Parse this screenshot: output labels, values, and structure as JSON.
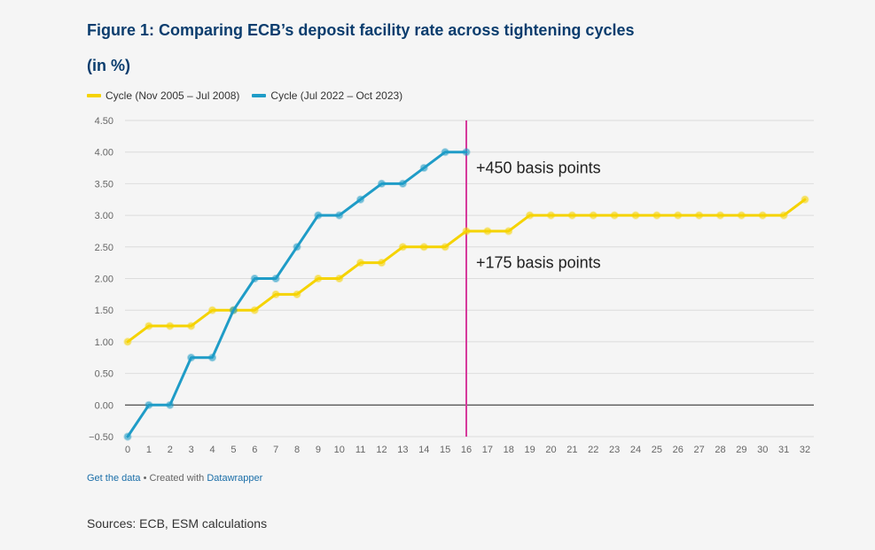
{
  "chart_data": {
    "type": "line",
    "title": "Figure 1: Comparing ECB’s deposit facility rate across tightening cycles",
    "subtitle": "(in %)",
    "xlabel": "",
    "ylabel": "",
    "ylim": [
      -0.5,
      4.5
    ],
    "xlim": [
      0,
      32
    ],
    "yticks": [
      "4.50",
      "4.00",
      "3.50",
      "3.00",
      "2.50",
      "2.00",
      "1.50",
      "1.00",
      "0.50",
      "0.00",
      "−0.50"
    ],
    "ytick_values": [
      4.5,
      4.0,
      3.5,
      3.0,
      2.5,
      2.0,
      1.5,
      1.0,
      0.5,
      0.0,
      -0.5
    ],
    "xticks": [
      0,
      1,
      2,
      3,
      4,
      5,
      6,
      7,
      8,
      9,
      10,
      11,
      12,
      13,
      14,
      15,
      16,
      17,
      18,
      19,
      20,
      21,
      22,
      23,
      24,
      25,
      26,
      27,
      28,
      29,
      30,
      31,
      32
    ],
    "grid": true,
    "legend_position": "top-left",
    "series": [
      {
        "name": "Cycle (Nov 2005 – Jul 2008)",
        "color": "#f5d300",
        "x": [
          0,
          1,
          2,
          3,
          4,
          5,
          6,
          7,
          8,
          9,
          10,
          11,
          12,
          13,
          14,
          15,
          16,
          17,
          18,
          19,
          20,
          21,
          22,
          23,
          24,
          25,
          26,
          27,
          28,
          29,
          30,
          31,
          32
        ],
        "values": [
          1.0,
          1.25,
          1.25,
          1.25,
          1.5,
          1.5,
          1.5,
          1.75,
          1.75,
          2.0,
          2.0,
          2.25,
          2.25,
          2.5,
          2.5,
          2.5,
          2.75,
          2.75,
          2.75,
          3.0,
          3.0,
          3.0,
          3.0,
          3.0,
          3.0,
          3.0,
          3.0,
          3.0,
          3.0,
          3.0,
          3.0,
          3.0,
          3.25
        ]
      },
      {
        "name": "Cycle (Jul 2022 – Oct 2023)",
        "color": "#1f9cc7",
        "x": [
          0,
          1,
          2,
          3,
          4,
          5,
          6,
          7,
          8,
          9,
          10,
          11,
          12,
          13,
          14,
          15,
          16
        ],
        "values": [
          -0.5,
          0.0,
          0.0,
          0.75,
          0.75,
          1.5,
          2.0,
          2.0,
          2.5,
          3.0,
          3.0,
          3.25,
          3.5,
          3.5,
          3.75,
          4.0,
          4.0
        ]
      }
    ],
    "reference_line": {
      "x": 16,
      "color": "#d63a9b"
    },
    "annotations": [
      {
        "text": "+450 basis points",
        "x": 16,
        "y": 3.75
      },
      {
        "text": "+175 basis points",
        "x": 16,
        "y": 2.25
      }
    ]
  },
  "footer": {
    "get_data": "Get the data",
    "created_with": " • Created with ",
    "datawrapper": "Datawrapper",
    "sources": "Sources: ECB, ESM calculations"
  }
}
